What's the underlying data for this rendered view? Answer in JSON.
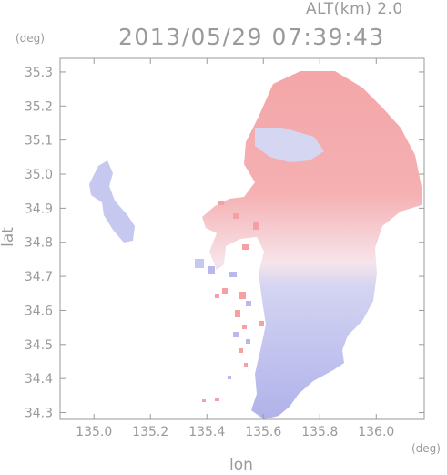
{
  "header": {
    "altitude_label": "ALT(km)  2.0",
    "datetime": "2013/05/29 07:39:43"
  },
  "axes": {
    "x_unit": "(deg)",
    "y_unit": "(deg)",
    "x_label": "lon",
    "y_label": "lat",
    "x_range": [
      134.88,
      136.17
    ],
    "y_range": [
      34.28,
      35.34
    ],
    "x_ticks": [
      "135.0",
      "135.2",
      "135.4",
      "135.6",
      "135.8",
      "136.0"
    ],
    "y_ticks": [
      "35.3",
      "35.2",
      "35.1",
      "35.0",
      "34.9",
      "34.8",
      "34.7",
      "34.6",
      "34.5",
      "34.4",
      "34.3"
    ]
  },
  "colors": {
    "receding": "#f4a0a4",
    "approaching": "#b8b8ec",
    "frame": "#9a9a9a"
  }
}
